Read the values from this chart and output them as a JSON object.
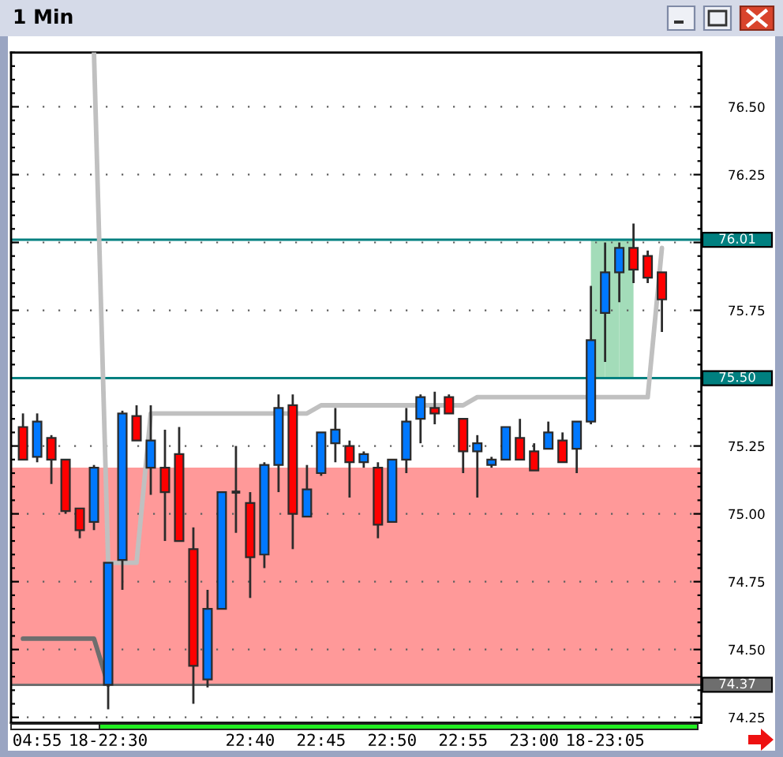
{
  "chart_data": {
    "type": "candlestick",
    "title": "1 Min",
    "categories": [
      null,
      "04:55",
      null,
      null,
      null,
      null,
      "18-22:30",
      null,
      null,
      null,
      null,
      null,
      null,
      null,
      null,
      null,
      "22:40",
      null,
      null,
      null,
      null,
      "22:45",
      null,
      null,
      null,
      null,
      "22:50",
      null,
      null,
      null,
      null,
      "22:55",
      null,
      null,
      null,
      null,
      "23:00",
      null,
      null,
      null,
      null,
      "18-23:05",
      null,
      null,
      null,
      null
    ],
    "ohlc": [
      [
        75.32,
        75.37,
        75.2,
        75.2
      ],
      [
        75.21,
        75.37,
        75.19,
        75.34
      ],
      [
        75.28,
        75.29,
        75.11,
        75.2
      ],
      [
        75.2,
        75.2,
        75.0,
        75.01
      ],
      [
        75.02,
        75.02,
        74.91,
        74.94
      ],
      [
        74.97,
        75.18,
        74.94,
        75.17
      ],
      [
        74.37,
        74.82,
        74.28,
        74.82
      ],
      [
        74.83,
        75.38,
        74.72,
        75.37
      ],
      [
        75.36,
        75.4,
        75.27,
        75.27
      ],
      [
        75.17,
        75.4,
        75.07,
        75.27
      ],
      [
        75.17,
        75.31,
        74.9,
        75.08
      ],
      [
        75.22,
        75.32,
        74.9,
        74.9
      ],
      [
        74.87,
        74.95,
        74.3,
        74.44
      ],
      [
        74.39,
        74.72,
        74.36,
        74.65
      ],
      [
        74.65,
        75.08,
        74.65,
        75.08
      ],
      [
        75.08,
        75.25,
        74.93,
        75.08
      ],
      [
        75.04,
        75.08,
        74.69,
        74.84
      ],
      [
        74.85,
        75.19,
        74.8,
        75.18
      ],
      [
        75.18,
        75.44,
        75.08,
        75.39
      ],
      [
        75.4,
        75.44,
        74.87,
        75.0
      ],
      [
        74.99,
        75.18,
        74.99,
        75.09
      ],
      [
        75.15,
        75.3,
        75.14,
        75.3
      ],
      [
        75.26,
        75.39,
        75.19,
        75.31
      ],
      [
        75.25,
        75.27,
        75.06,
        75.19
      ],
      [
        75.19,
        75.23,
        75.17,
        75.22
      ],
      [
        75.17,
        75.19,
        74.91,
        74.96
      ],
      [
        74.97,
        75.2,
        74.97,
        75.2
      ],
      [
        75.2,
        75.39,
        75.15,
        75.34
      ],
      [
        75.35,
        75.44,
        75.26,
        75.43
      ],
      [
        75.39,
        75.45,
        75.33,
        75.37
      ],
      [
        75.43,
        75.44,
        75.37,
        75.37
      ],
      [
        75.35,
        75.35,
        75.15,
        75.23
      ],
      [
        75.23,
        75.29,
        75.06,
        75.26
      ],
      [
        75.18,
        75.21,
        75.17,
        75.2
      ],
      [
        75.2,
        75.32,
        75.2,
        75.32
      ],
      [
        75.28,
        75.35,
        75.2,
        75.2
      ],
      [
        75.23,
        75.26,
        75.16,
        75.16
      ],
      [
        75.24,
        75.34,
        75.24,
        75.3
      ],
      [
        75.27,
        75.3,
        75.19,
        75.19
      ],
      [
        75.24,
        75.34,
        75.15,
        75.34
      ],
      [
        75.34,
        75.84,
        75.33,
        75.64
      ],
      [
        75.74,
        76.0,
        75.56,
        75.89
      ],
      [
        75.89,
        76.0,
        75.78,
        75.98
      ],
      [
        75.98,
        76.07,
        75.85,
        75.9
      ],
      [
        75.95,
        75.97,
        75.85,
        75.87
      ],
      [
        75.89,
        75.89,
        75.67,
        75.79
      ]
    ],
    "colors": [
      "#ff0000",
      "#0078ff",
      "#ff0000",
      "#ff0000",
      "#ff0000",
      "#0078ff",
      "#0078ff",
      "#0078ff",
      "#ff0000",
      "#0078ff",
      "#ff0000",
      "#ff0000",
      "#ff0000",
      "#0078ff",
      "#0078ff",
      "#2b2b2b",
      "#ff0000",
      "#0078ff",
      "#0078ff",
      "#ff0000",
      "#0078ff",
      "#0078ff",
      "#0078ff",
      "#ff0000",
      "#0078ff",
      "#ff0000",
      "#0078ff",
      "#0078ff",
      "#0078ff",
      "#ff0000",
      "#ff0000",
      "#ff0000",
      "#0078ff",
      "#0078ff",
      "#0078ff",
      "#ff0000",
      "#ff0000",
      "#0078ff",
      "#ff0000",
      "#0078ff",
      "#0078ff",
      "#0078ff",
      "#0078ff",
      "#ff0000",
      "#ff0000",
      "#ff0000"
    ],
    "series": [
      {
        "type": "line",
        "color": "#c0c0c0",
        "values": [
          null,
          null,
          null,
          null,
          null,
          76.7,
          74.82,
          74.82,
          74.82,
          75.37,
          75.37,
          75.37,
          75.37,
          75.37,
          75.37,
          75.37,
          75.37,
          75.37,
          75.37,
          75.37,
          75.37,
          75.4,
          75.4,
          75.4,
          75.4,
          75.4,
          75.4,
          75.4,
          75.4,
          75.4,
          75.4,
          75.4,
          75.43,
          75.43,
          75.43,
          75.43,
          75.43,
          75.43,
          75.43,
          75.43,
          75.43,
          75.43,
          75.43,
          75.43,
          75.43,
          75.98
        ]
      },
      {
        "type": "line",
        "color": "#6e6e6e",
        "values": [
          74.54,
          74.54,
          74.54,
          74.54,
          74.54,
          74.54,
          74.37,
          null,
          null,
          null,
          null,
          null,
          null,
          null,
          null,
          null,
          null,
          null,
          null,
          null,
          null,
          null,
          null,
          null,
          null,
          null,
          null,
          null,
          null,
          null,
          null,
          null,
          null,
          null,
          null,
          null,
          null,
          null,
          null,
          null,
          null,
          null,
          null,
          null,
          null,
          null
        ]
      },
      {
        "type": "bar",
        "color": "#a3dcb9",
        "values": [
          null,
          null,
          null,
          null,
          null,
          null,
          null,
          null,
          null,
          null,
          null,
          null,
          null,
          null,
          null,
          null,
          null,
          null,
          null,
          null,
          null,
          null,
          null,
          null,
          null,
          null,
          null,
          null,
          null,
          null,
          null,
          null,
          null,
          null,
          null,
          null,
          null,
          null,
          null,
          null,
          0.51,
          0.51,
          0.51,
          null,
          null,
          null
        ],
        "base": [
          null,
          null,
          null,
          null,
          null,
          null,
          null,
          null,
          null,
          null,
          null,
          null,
          null,
          null,
          null,
          null,
          null,
          null,
          null,
          null,
          null,
          null,
          null,
          null,
          null,
          null,
          null,
          null,
          null,
          null,
          null,
          null,
          null,
          null,
          null,
          null,
          null,
          null,
          null,
          null,
          75.5,
          75.5,
          75.5,
          null,
          null,
          null
        ]
      }
    ],
    "ylim": [
      74.23,
      76.7
    ],
    "yticks": [
      {
        "value": 74.25,
        "label": "74.25"
      },
      {
        "value": 74.5,
        "label": "74.50"
      },
      {
        "value": 74.75,
        "label": "74.75"
      },
      {
        "value": 75.0,
        "label": "75.00"
      },
      {
        "value": 75.25,
        "label": "75.25"
      },
      {
        "value": 75.5,
        "label": null
      },
      {
        "value": 75.75,
        "label": "75.75"
      },
      {
        "value": 76.0,
        "label": null
      },
      {
        "value": 76.25,
        "label": "76.25"
      },
      {
        "value": 76.5,
        "label": "76.50"
      }
    ],
    "grid": "y",
    "ref_lines": [
      {
        "axis": "y",
        "value": 76.01,
        "label": "76.01",
        "color": "#008080"
      },
      {
        "axis": "y",
        "value": 75.5,
        "label": "75.50",
        "color": "#008080"
      },
      {
        "axis": "y",
        "value": 74.37,
        "label": "74.37",
        "color": "#6e6e6e"
      }
    ],
    "bands": [
      {
        "axis": "y",
        "from": 74.37,
        "to": 75.17,
        "color": "#ff9999"
      }
    ]
  }
}
